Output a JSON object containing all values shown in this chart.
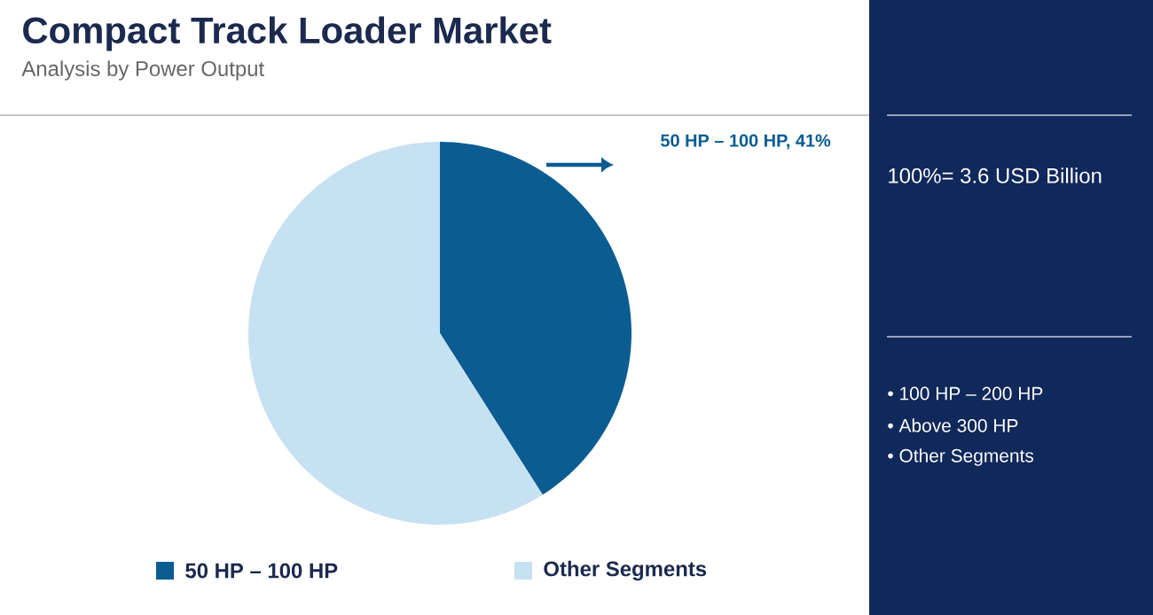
{
  "chart_data": {
    "type": "pie",
    "title": "Compact Track Loader Market",
    "subtitle": "Analysis by Power Output",
    "categories": [
      "50 HP – 100 HP",
      "Other Segments"
    ],
    "values": [
      41,
      59
    ],
    "colors": [
      "#0b5c91",
      "#c6e1f2"
    ],
    "legend": "bottom",
    "annotations": [
      "50 HP – 100 HP, 41%",
      "100%= 3.6 USD Billion",
      "• 100 HP – 200 HP",
      "• Above 300 HP",
      "• Other Segments"
    ]
  }
}
